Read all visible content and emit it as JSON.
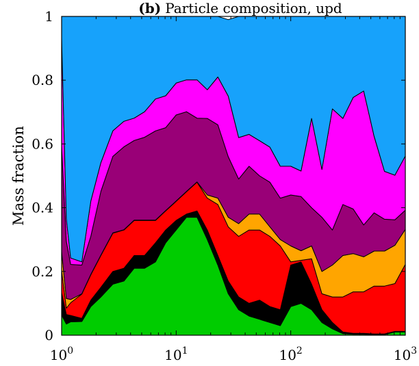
{
  "chart_data": {
    "type": "area",
    "stacked": true,
    "title_prefix": "(b)",
    "title": "Particle composition, upd",
    "ylabel": "Mass fraction",
    "xlabel": "",
    "xscale": "log",
    "xlim": [
      1,
      1000
    ],
    "ylim": [
      0,
      1
    ],
    "xticks": [
      {
        "base": "10",
        "exp": "0"
      },
      {
        "base": "10",
        "exp": "1"
      },
      {
        "base": "10",
        "exp": "2"
      },
      {
        "base": "10",
        "exp": "3"
      }
    ],
    "yticks": [
      "0",
      "0.2",
      "0.4",
      "0.6",
      "0.8",
      "1"
    ],
    "grid": false,
    "legend": "none",
    "x": [
      1,
      1.1,
      1.2,
      1.5,
      1.8,
      2.2,
      2.8,
      3.5,
      4.3,
      5.3,
      6.6,
      8.1,
      10,
      12.3,
      15.2,
      18.7,
      23.1,
      28.5,
      35.1,
      43.3,
      53.4,
      65.8,
      81.1,
      100,
      123,
      152,
      187,
      231,
      285,
      351,
      433,
      534,
      658,
      811,
      1000
    ],
    "series": [
      {
        "color": "#00cc00",
        "values": [
          0.063,
          0.035,
          0.042,
          0.043,
          0.09,
          0.12,
          0.16,
          0.17,
          0.21,
          0.21,
          0.23,
          0.29,
          0.33,
          0.37,
          0.37,
          0.3,
          0.22,
          0.13,
          0.08,
          0.06,
          0.05,
          0.04,
          0.03,
          0.09,
          0.1,
          0.08,
          0.04,
          0.02,
          0.005,
          0.003,
          0.003,
          0.002,
          0.002,
          0.01,
          0.01
        ]
      },
      {
        "color": "#000000",
        "values": [
          0.07,
          0.03,
          0.02,
          0.01,
          0.02,
          0.03,
          0.04,
          0.04,
          0.04,
          0.04,
          0.06,
          0.04,
          0.03,
          0.01,
          0.02,
          0.03,
          0.03,
          0.04,
          0.04,
          0.04,
          0.06,
          0.05,
          0.05,
          0.13,
          0.13,
          0.08,
          0.04,
          0.02,
          0.005,
          0.003,
          0.003,
          0.002,
          0.002,
          0.002,
          0.002
        ]
      },
      {
        "color": "#ff0000",
        "values": [
          0.07,
          0.02,
          0.04,
          0.076,
          0.08,
          0.1,
          0.12,
          0.12,
          0.11,
          0.11,
          0.07,
          0.06,
          0.06,
          0.07,
          0.09,
          0.1,
          0.16,
          0.17,
          0.19,
          0.23,
          0.22,
          0.22,
          0.2,
          0.01,
          0.005,
          0.08,
          0.05,
          0.08,
          0.11,
          0.13,
          0.13,
          0.15,
          0.15,
          0.15,
          0.21
        ]
      },
      {
        "color": "#ffa500",
        "values": [
          0.06,
          0.03,
          0.01,
          0.001,
          0.001,
          0.001,
          0.001,
          0.001,
          0.001,
          0.001,
          0.001,
          0.001,
          0.001,
          0.001,
          0.001,
          0.01,
          0.02,
          0.03,
          0.04,
          0.05,
          0.05,
          0.03,
          0.02,
          0.05,
          0.03,
          0.04,
          0.07,
          0.1,
          0.13,
          0.12,
          0.11,
          0.11,
          0.11,
          0.12,
          0.11
        ]
      },
      {
        "color": "#990077",
        "values": [
          0.33,
          0.18,
          0.11,
          0.09,
          0.12,
          0.2,
          0.24,
          0.26,
          0.25,
          0.26,
          0.28,
          0.26,
          0.27,
          0.25,
          0.2,
          0.24,
          0.23,
          0.19,
          0.14,
          0.15,
          0.12,
          0.14,
          0.13,
          0.16,
          0.17,
          0.12,
          0.17,
          0.11,
          0.16,
          0.14,
          0.1,
          0.12,
          0.1,
          0.08,
          0.06
        ]
      },
      {
        "color": "#ff00ff",
        "values": [
          0.34,
          0.07,
          0.02,
          0.01,
          0.11,
          0.09,
          0.08,
          0.08,
          0.07,
          0.08,
          0.1,
          0.1,
          0.1,
          0.1,
          0.12,
          0.09,
          0.15,
          0.19,
          0.13,
          0.1,
          0.11,
          0.11,
          0.1,
          0.09,
          0.08,
          0.28,
          0.15,
          0.38,
          0.27,
          0.35,
          0.42,
          0.24,
          0.15,
          0.14,
          0.17
        ]
      },
      {
        "color": "#17a2fb",
        "values": [
          0.067,
          0.645,
          0.758,
          0.77,
          0.579,
          0.459,
          0.359,
          0.329,
          0.319,
          0.299,
          0.259,
          0.249,
          0.209,
          0.199,
          0.199,
          0.23,
          0.19,
          0.24,
          0.38,
          0.37,
          0.39,
          0.41,
          0.47,
          0.47,
          0.485,
          0.32,
          0.48,
          0.29,
          0.325,
          0.254,
          0.234,
          0.376,
          0.486,
          0.498,
          0.438
        ]
      }
    ]
  }
}
